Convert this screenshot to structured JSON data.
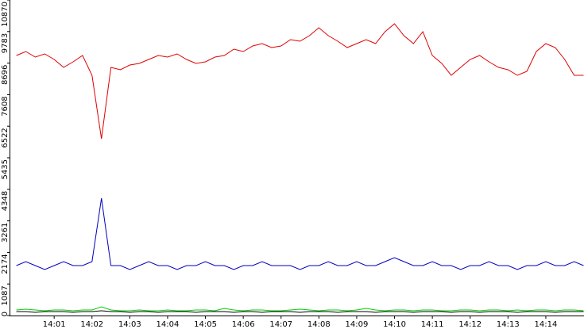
{
  "chart_data": {
    "type": "line",
    "x": [
      0,
      0.25,
      0.5,
      0.75,
      1,
      1.25,
      1.5,
      1.75,
      2,
      2.25,
      2.5,
      2.75,
      3,
      3.25,
      3.5,
      3.75,
      4,
      4.25,
      4.5,
      4.75,
      5,
      5.25,
      5.5,
      5.75,
      6,
      6.25,
      6.5,
      6.75,
      7,
      7.25,
      7.5,
      7.75,
      8,
      8.25,
      8.5,
      8.75,
      9,
      9.25,
      9.5,
      9.75,
      10,
      10.25,
      10.5,
      10.75,
      11,
      11.25,
      11.5,
      11.75,
      12,
      12.25,
      12.5,
      12.75,
      13,
      13.25,
      13.5,
      13.75,
      14,
      14.25,
      14.5,
      14.75,
      15
    ],
    "series": [
      {
        "color": "#e00000",
        "values": [
          8958,
          9094,
          8903,
          9012,
          8821,
          8548,
          8739,
          8958,
          8275,
          6090,
          8548,
          8466,
          8630,
          8685,
          8821,
          8958,
          8903,
          9012,
          8821,
          8685,
          8739,
          8903,
          8958,
          9176,
          9094,
          9285,
          9367,
          9231,
          9285,
          9504,
          9449,
          9640,
          9914,
          9640,
          9449,
          9231,
          9367,
          9504,
          9367,
          9777,
          10050,
          9640,
          9367,
          9777,
          8958,
          8685,
          8275,
          8548,
          8821,
          8958,
          8739,
          8548,
          8466,
          8275,
          8411,
          9094,
          9367,
          9231,
          8821,
          8275,
          8275
        ]
      },
      {
        "color": "#0000c0",
        "values": [
          1720,
          1857,
          1720,
          1584,
          1720,
          1857,
          1720,
          1720,
          1857,
          4040,
          1720,
          1720,
          1584,
          1720,
          1857,
          1720,
          1720,
          1584,
          1720,
          1720,
          1857,
          1720,
          1720,
          1584,
          1720,
          1720,
          1857,
          1720,
          1720,
          1720,
          1584,
          1720,
          1720,
          1857,
          1720,
          1720,
          1857,
          1720,
          1720,
          1857,
          1994,
          1857,
          1720,
          1720,
          1857,
          1720,
          1720,
          1584,
          1720,
          1720,
          1857,
          1720,
          1720,
          1584,
          1720,
          1720,
          1857,
          1720,
          1720,
          1857,
          1720
        ]
      },
      {
        "color": "#00d000",
        "values": [
          191,
          219,
          191,
          164,
          191,
          191,
          164,
          191,
          191,
          300,
          191,
          164,
          164,
          191,
          164,
          164,
          191,
          164,
          164,
          191,
          191,
          164,
          246,
          191,
          164,
          191,
          191,
          164,
          164,
          191,
          219,
          191,
          164,
          191,
          191,
          164,
          191,
          246,
          191,
          164,
          191,
          191,
          164,
          191,
          191,
          164,
          164,
          191,
          191,
          164,
          191,
          191,
          164,
          191,
          164,
          191,
          191,
          164,
          191,
          191,
          164
        ]
      },
      {
        "color": "#000000",
        "values": [
          137,
          137,
          109,
          137,
          137,
          137,
          109,
          137,
          137,
          164,
          137,
          137,
          109,
          137,
          137,
          109,
          137,
          137,
          137,
          109,
          137,
          137,
          137,
          109,
          137,
          137,
          109,
          137,
          137,
          137,
          109,
          137,
          137,
          137,
          109,
          137,
          137,
          137,
          109,
          137,
          137,
          137,
          109,
          137,
          137,
          137,
          109,
          137,
          137,
          109,
          137,
          137,
          137,
          109,
          137,
          137,
          137,
          109,
          137,
          137,
          137
        ]
      }
    ],
    "xlim": [
      -0.18,
      15.01
    ],
    "xticks": [
      {
        "value": 1,
        "label": "14:01"
      },
      {
        "value": 2,
        "label": "14:02"
      },
      {
        "value": 3,
        "label": "14:03"
      },
      {
        "value": 4,
        "label": "14:04"
      },
      {
        "value": 5,
        "label": "14:05"
      },
      {
        "value": 6,
        "label": "14:06"
      },
      {
        "value": 7,
        "label": "14:07"
      },
      {
        "value": 8,
        "label": "14:08"
      },
      {
        "value": 9,
        "label": "14:09"
      },
      {
        "value": 10,
        "label": "14:10"
      },
      {
        "value": 11,
        "label": "14:11"
      },
      {
        "value": 12,
        "label": "14:12"
      },
      {
        "value": 13,
        "label": "14:13"
      },
      {
        "value": 14,
        "label": "14:14"
      }
    ],
    "ylim": [
      0,
      10870
    ],
    "yticks": [
      0,
      1087,
      2174,
      3261,
      4348,
      5435,
      6522,
      7608,
      8696,
      9783,
      10870
    ]
  }
}
